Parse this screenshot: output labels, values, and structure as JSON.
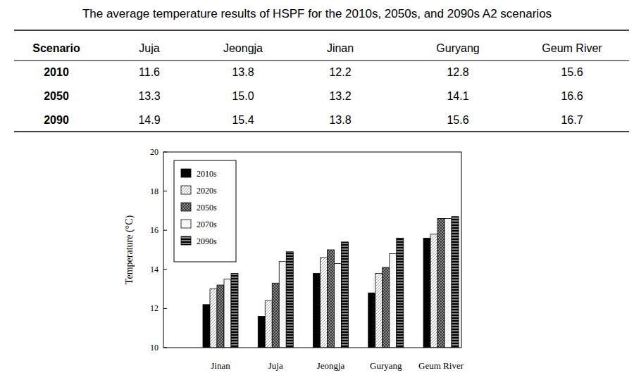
{
  "title": "The average temperature results of HSPF for the 2010s, 2050s, and 2090s A2 scenarios",
  "table": {
    "header": [
      "Scenario",
      "Juja",
      "Jeongja",
      "Jinan",
      "Guryang",
      "Geum River"
    ],
    "rows": [
      [
        "2010",
        "11.6",
        "13.8",
        "12.2",
        "12.8",
        "15.6"
      ],
      [
        "2050",
        "13.3",
        "15.0",
        "13.2",
        "14.1",
        "16.6"
      ],
      [
        "2090",
        "14.9",
        "15.4",
        "13.8",
        "15.6",
        "16.7"
      ]
    ]
  },
  "chart_data": {
    "type": "bar",
    "y_label": "Temperature (°C)",
    "categories": [
      "Jinan",
      "Juja",
      "Jeongja",
      "Guryang",
      "Geum River"
    ],
    "series": [
      {
        "name": "2010s",
        "color": "#000000",
        "values": [
          12.2,
          11.6,
          13.8,
          12.8,
          15.6
        ]
      },
      {
        "name": "2020s",
        "color": "#ffffff",
        "values": [
          13.0,
          12.4,
          14.6,
          13.8,
          15.8
        ]
      },
      {
        "name": "2050s",
        "color": "#3a3a3a",
        "values": [
          13.2,
          13.3,
          15.0,
          14.1,
          16.6
        ]
      },
      {
        "name": "2070s",
        "color": "#ffffff",
        "values": [
          13.5,
          14.4,
          14.3,
          14.8,
          16.6
        ]
      },
      {
        "name": "2090s",
        "color": "#000000",
        "values": [
          13.8,
          14.9,
          15.4,
          15.6,
          16.7
        ]
      }
    ],
    "ylim": [
      10,
      20
    ],
    "yticks": [
      10,
      12,
      14,
      16,
      18,
      20
    ],
    "grid": false,
    "legend": "upper left"
  }
}
